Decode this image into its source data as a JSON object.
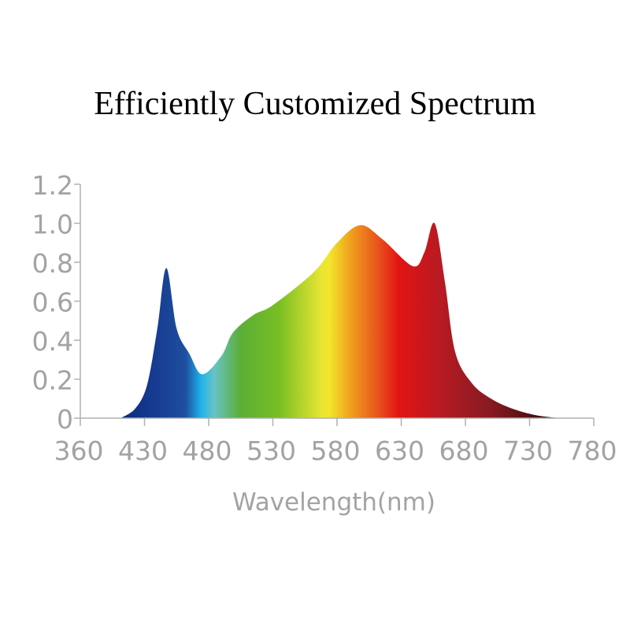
{
  "chart_data": {
    "type": "area",
    "title": "Efficiently Customized Spectrum",
    "xlabel": "Wavelength(nm)",
    "ylabel": "",
    "x_ticks": [
      "360",
      "430",
      "480",
      "530",
      "580",
      "630",
      "680",
      "730",
      "780"
    ],
    "y_ticks": [
      "0",
      "0.2",
      "0.4",
      "0.6",
      "0.8",
      "1.0",
      "1.2"
    ],
    "xlim": [
      360,
      780
    ],
    "ylim": [
      0,
      1.2
    ],
    "grid": false,
    "fill": "spectral gradient",
    "series": [
      {
        "x": [
          404,
          420,
          432,
          440,
          447,
          455,
          465,
          475,
          490,
          499,
          515,
          530,
          562,
          580,
          598,
          615,
          639,
          648,
          656,
          664,
          672,
          685,
          700,
          716,
          735,
          753
        ],
        "y": [
          0,
          0.05,
          0.17,
          0.46,
          0.77,
          0.46,
          0.33,
          0.225,
          0.32,
          0.44,
          0.53,
          0.58,
          0.75,
          0.9,
          0.99,
          0.92,
          0.78,
          0.85,
          1.0,
          0.7,
          0.34,
          0.18,
          0.1,
          0.05,
          0.015,
          0
        ]
      }
    ],
    "gradient_colors": [
      {
        "nm": 404,
        "color": "#0b2a7e"
      },
      {
        "nm": 440,
        "color": "#173d92"
      },
      {
        "nm": 462,
        "color": "#1f4f9e"
      },
      {
        "nm": 474,
        "color": "#1fb2ea"
      },
      {
        "nm": 484,
        "color": "#68c3c6"
      },
      {
        "nm": 505,
        "color": "#5bae35"
      },
      {
        "nm": 535,
        "color": "#78be24"
      },
      {
        "nm": 568,
        "color": "#e8e632"
      },
      {
        "nm": 574,
        "color": "#f2e62c"
      },
      {
        "nm": 590,
        "color": "#f0a21e"
      },
      {
        "nm": 612,
        "color": "#e8531c"
      },
      {
        "nm": 628,
        "color": "#e21414"
      },
      {
        "nm": 660,
        "color": "#b81a22"
      },
      {
        "nm": 700,
        "color": "#861a22"
      },
      {
        "nm": 755,
        "color": "#2a0606"
      }
    ]
  }
}
